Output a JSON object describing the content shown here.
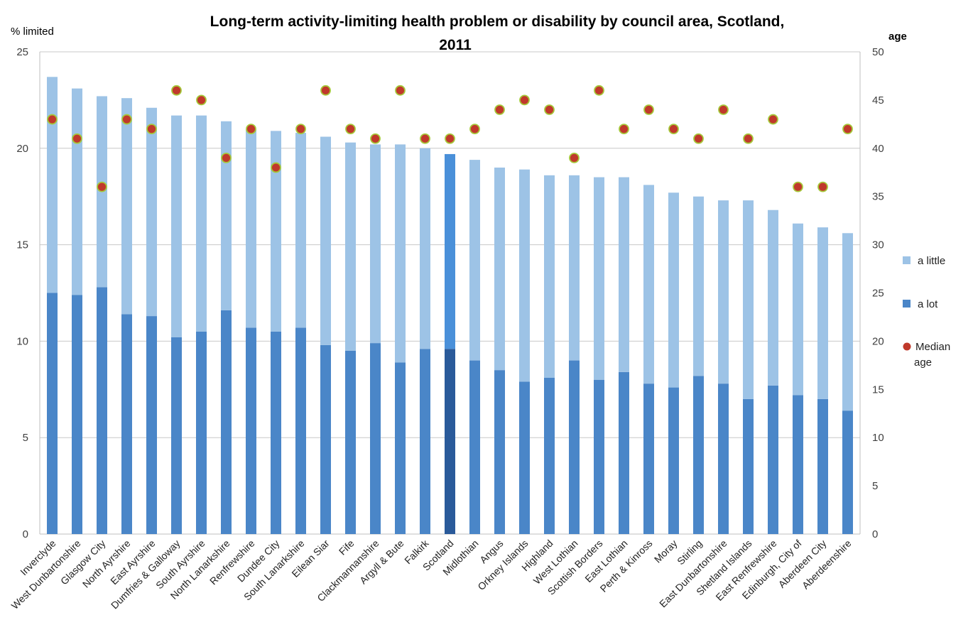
{
  "chart_data": {
    "type": "bar",
    "stacked": true,
    "title_line1": "Long-term activity-limiting  health problem or disability by council area, Scotland,",
    "title_line2": "2011",
    "ylabel": "% limited",
    "y2label": "age",
    "ylim": [
      0,
      25
    ],
    "y2lim": [
      0,
      50
    ],
    "yticks": [
      "0",
      "5",
      "10",
      "15",
      "20",
      "25"
    ],
    "y2ticks": [
      "0",
      "5",
      "10",
      "15",
      "20",
      "25",
      "30",
      "35",
      "40",
      "45",
      "50"
    ],
    "grid": true,
    "legend_position": "right",
    "highlight_category": "Scotland",
    "colors": {
      "a_little": "#9dc3e6",
      "a_lot": "#4a86c8",
      "scotland_a_little": "#4a90d9",
      "scotland_a_lot": "#2a5a9a",
      "median_age": "#c0392b",
      "median_age_edge": "#a6c83a"
    },
    "categories": [
      "Inverclyde",
      "West Dunbartonshire",
      "Glasgow City",
      "North Ayrshire",
      "East Ayrshire",
      "Dumfries & Galloway",
      "South Ayrshire",
      "North Lanarkshire",
      "Renfrewshire",
      "Dundee City",
      "South Lanarkshire",
      "Eilean Siar",
      "Fife",
      "Clackmannanshire",
      "Argyll & Bute",
      "Falkirk",
      "Scotland",
      "Midlothian",
      "Angus",
      "Orkney Islands",
      "Highland",
      "West Lothian",
      "Scottish Borders",
      "East Lothian",
      "Perth & Kinross",
      "Moray",
      "Stirling",
      "East Dunbartonshire",
      "Shetland Islands",
      "East Renfrewshire",
      "Edinburgh, City of",
      "Aberdeen City",
      "Aberdeenshire"
    ],
    "series": [
      {
        "name": "a little",
        "values": [
          11.2,
          10.7,
          9.9,
          11.2,
          10.8,
          11.5,
          11.2,
          9.8,
          10.3,
          10.4,
          10.1,
          10.8,
          10.8,
          10.3,
          11.3,
          10.4,
          10.1,
          10.4,
          10.5,
          11.0,
          10.5,
          9.6,
          10.5,
          10.1,
          10.3,
          10.1,
          9.3,
          9.5,
          10.3,
          9.1,
          8.9,
          8.9,
          9.2
        ]
      },
      {
        "name": "a lot",
        "values": [
          12.5,
          12.4,
          12.8,
          11.4,
          11.3,
          10.2,
          10.5,
          11.6,
          10.7,
          10.5,
          10.7,
          9.8,
          9.5,
          9.9,
          8.9,
          9.6,
          9.6,
          9.0,
          8.5,
          7.9,
          8.1,
          9.0,
          8.0,
          8.4,
          7.8,
          7.6,
          8.2,
          7.8,
          7.0,
          7.7,
          7.2,
          7.0,
          6.4
        ]
      },
      {
        "name": "Median age",
        "axis": "y2",
        "values": [
          43,
          41,
          36,
          43,
          42,
          46,
          45,
          39,
          42,
          38,
          42,
          46,
          42,
          41,
          46,
          41,
          41,
          42,
          44,
          45,
          44,
          39,
          46,
          42,
          44,
          42,
          41,
          44,
          41,
          43,
          36,
          36,
          42
        ]
      }
    ],
    "legend": [
      {
        "key": "a_little",
        "label": "a little"
      },
      {
        "key": "a_lot",
        "label": "a lot"
      },
      {
        "key": "median_age",
        "label_line1": "Median",
        "label_line2": "age"
      }
    ]
  }
}
